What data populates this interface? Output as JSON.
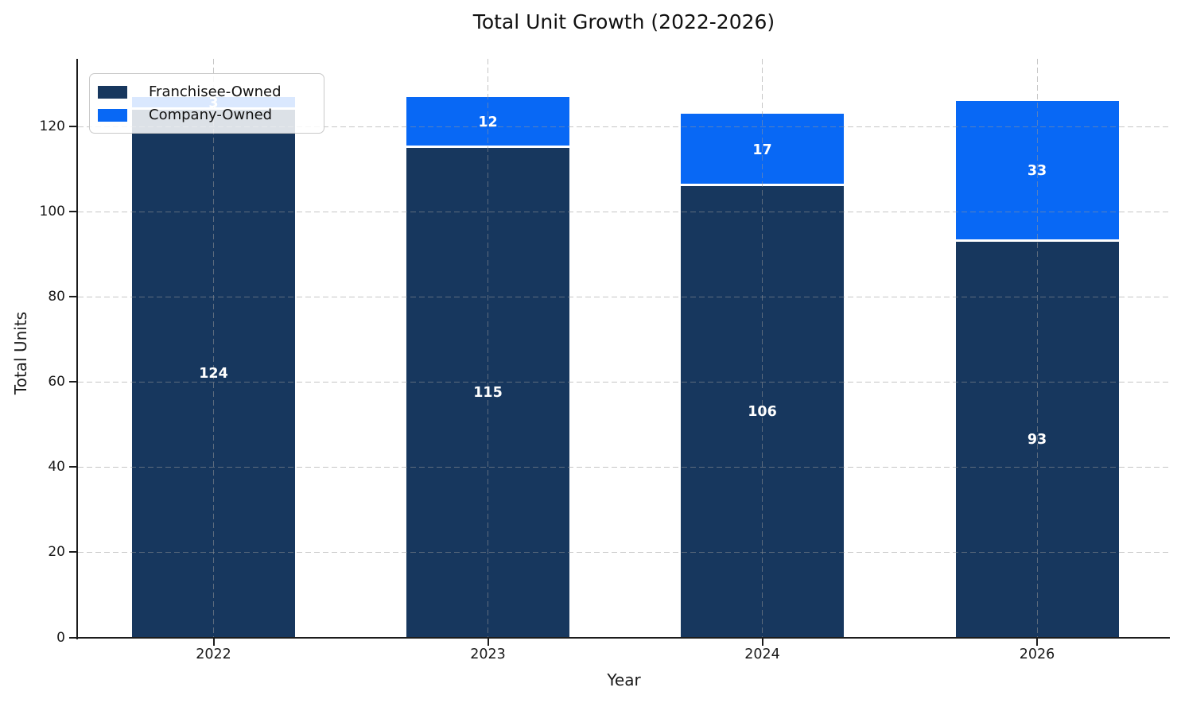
{
  "figure": {
    "background": "#ffffff",
    "text_color": "#1a1a1a"
  },
  "chart_data": {
    "type": "bar",
    "stacked": true,
    "title": "Total Unit Growth (2022-2026)",
    "xlabel": "Year",
    "ylabel": "Total Units",
    "categories": [
      "2022",
      "2023",
      "2024",
      "2026"
    ],
    "series": [
      {
        "name": "Franchisee-Owned",
        "color": "#17375e",
        "values": [
          124,
          115,
          106,
          93
        ],
        "value_labels": [
          "124",
          "115",
          "106",
          "93"
        ],
        "label_color": "#ffffff"
      },
      {
        "name": "Company-Owned",
        "color": "#0868f5",
        "values": [
          3,
          12,
          17,
          33
        ],
        "value_labels": [
          "3",
          "12",
          "17",
          "33"
        ],
        "label_color": "#ffffff"
      }
    ],
    "totals": [
      127,
      127,
      123,
      126
    ],
    "yticks": [
      0,
      20,
      40,
      60,
      80,
      100,
      120
    ],
    "ytick_labels": [
      "0",
      "20",
      "40",
      "60",
      "80",
      "100",
      "120"
    ],
    "ylim": [
      0,
      136
    ],
    "grid": "dashed, horizontal and vertical, drawn above bars",
    "legend_position": "upper left",
    "segment_separator_color": "#ffffff"
  }
}
